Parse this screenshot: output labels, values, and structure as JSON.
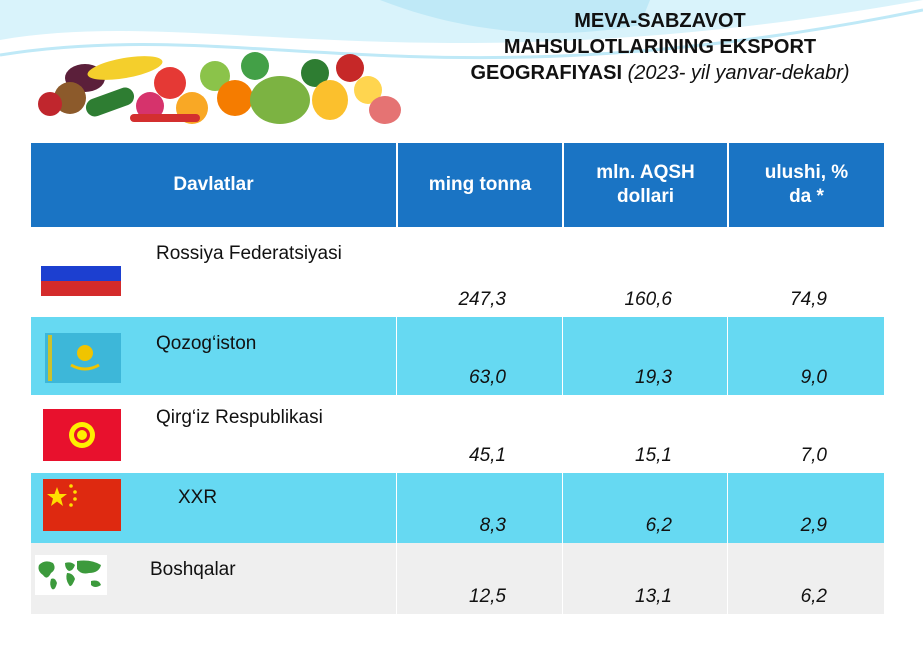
{
  "title": {
    "line1": "MEVA-SABZAVOT",
    "line2": "MAHSULOTLARINING EKSPORT",
    "line3_main": "GEOGRAFIYASI",
    "line3_period": "(2023- yil yanvar-dekabr)"
  },
  "table": {
    "headers": {
      "country": "Davlatlar",
      "tonnes": "ming tonna",
      "usd": "mln. AQSH dollari",
      "share": "ulushi, % da *"
    },
    "rows": [
      {
        "country": "Rossiya Federatsiyasi",
        "tonnes": "247,3",
        "usd": "160,6",
        "share": "74,9",
        "flag": "russia-flag"
      },
      {
        "country": "Qozog‘iston",
        "tonnes": "63,0",
        "usd": "19,3",
        "share": "9,0",
        "flag": "kazakhstan-flag"
      },
      {
        "country": "Qirg‘iz Respublikasi",
        "tonnes": "45,1",
        "usd": "15,1",
        "share": "7,0",
        "flag": "kyrgyzstan-flag"
      },
      {
        "country": "XXR",
        "tonnes": "8,3",
        "usd": "6,2",
        "share": "2,9",
        "flag": "china-flag"
      },
      {
        "country": "Boshqalar",
        "tonnes": "12,5",
        "usd": "13,1",
        "share": "6,2",
        "flag": "world-map-icon"
      }
    ]
  },
  "colors": {
    "header_bg": "#1a74c4",
    "row_cyan": "#66d9f2",
    "row_grey": "#efefef"
  }
}
